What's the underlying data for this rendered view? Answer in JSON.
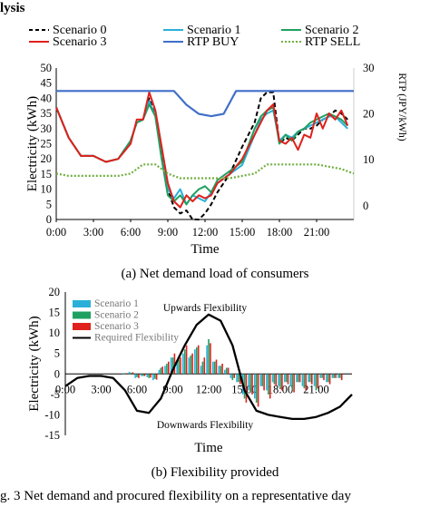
{
  "header_fragment": "lysis",
  "figure_caption": "g. 3 Net demand and procured flexibility on a representative day",
  "chart_data": [
    {
      "type": "line",
      "caption": "(a) Net demand load of consumers",
      "xlabel": "Time",
      "ylabel": "Electricity (kWh)",
      "y2label": "RTP (JPY/kWh)",
      "xlim": [
        0,
        24
      ],
      "ylim": [
        0,
        50
      ],
      "y2lim": [
        -3,
        30
      ],
      "xticks": [
        "0:00",
        "3:00",
        "6:00",
        "9:00",
        "12:00",
        "15:00",
        "18:00",
        "21:00"
      ],
      "yticks": [
        "0",
        "5",
        "10",
        "15",
        "20",
        "25",
        "30",
        "35",
        "40",
        "45",
        "50"
      ],
      "y2ticks": [
        "0",
        "10",
        "20",
        "30"
      ],
      "legend_position": "top, 3 columns",
      "series": [
        {
          "name": "Scenario 0",
          "color": "#000000",
          "style": "dashed",
          "axis": "left",
          "x": [
            0,
            1,
            2,
            3,
            4,
            5,
            6,
            6.5,
            7,
            7.5,
            8,
            8.5,
            9,
            9.5,
            10,
            10.5,
            11,
            11.5,
            12,
            12.5,
            13,
            14,
            15,
            16,
            16.5,
            17,
            17.5,
            18,
            18.5,
            19,
            19.5,
            20,
            20.5,
            21,
            21.5,
            22,
            22.5,
            23,
            23.5
          ],
          "values": [
            37,
            27,
            21,
            21,
            19,
            20,
            26,
            32,
            33,
            40,
            34,
            22,
            10,
            4,
            2,
            3,
            0,
            0,
            2,
            5,
            9,
            15,
            24,
            32,
            40,
            42,
            42,
            25,
            27,
            26,
            28,
            30,
            30,
            31,
            33,
            34,
            36,
            35,
            33
          ]
        },
        {
          "name": "Scenario 1",
          "color": "#2ab0d8",
          "style": "solid",
          "axis": "left",
          "x": [
            0,
            1,
            2,
            3,
            4,
            5,
            6,
            6.5,
            7,
            7.5,
            8,
            8.5,
            9,
            9.5,
            10,
            10.5,
            11,
            11.5,
            12,
            12.5,
            13,
            14,
            15,
            16,
            16.5,
            17,
            17.5,
            18,
            18.5,
            19,
            19.5,
            20,
            20.5,
            21,
            21.5,
            22,
            22.5,
            23,
            23.5
          ],
          "values": [
            37,
            27,
            21,
            21,
            19,
            20,
            26,
            32,
            33,
            39,
            34,
            20,
            10,
            7,
            10,
            5,
            8,
            7,
            6,
            9,
            12,
            15,
            18,
            28,
            33,
            35,
            36,
            26,
            28,
            27,
            29,
            30,
            31,
            32,
            33,
            34,
            34,
            32,
            30
          ]
        },
        {
          "name": "Scenario 2",
          "color": "#20a060",
          "style": "solid",
          "axis": "left",
          "x": [
            0,
            1,
            2,
            3,
            4,
            5,
            6,
            6.5,
            7,
            7.5,
            8,
            8.5,
            9,
            9.5,
            10,
            10.5,
            11,
            11.5,
            12,
            12.5,
            13,
            14,
            15,
            16,
            16.5,
            17,
            17.5,
            18,
            18.5,
            19,
            19.5,
            20,
            20.5,
            21,
            21.5,
            22,
            22.5,
            23,
            23.5
          ],
          "values": [
            37,
            27,
            21,
            21,
            19,
            20,
            26,
            32,
            33,
            38,
            34,
            20,
            8,
            6,
            8,
            5,
            8,
            10,
            11,
            9,
            13,
            16,
            19,
            30,
            34,
            36,
            37,
            25,
            28,
            26,
            29,
            30,
            32,
            33,
            34,
            35,
            34,
            33,
            31
          ]
        },
        {
          "name": "Scenario 3",
          "color": "#e0201c",
          "style": "solid",
          "axis": "left",
          "x": [
            0,
            1,
            2,
            3,
            4,
            5,
            6,
            6.5,
            7,
            7.5,
            8,
            8.5,
            9,
            9.5,
            10,
            10.5,
            11,
            11.5,
            12,
            12.5,
            13,
            14,
            15,
            16,
            16.5,
            17,
            17.5,
            18,
            18.5,
            19,
            19.5,
            20,
            20.5,
            21,
            21.5,
            22,
            22.5,
            23,
            23.5
          ],
          "values": [
            37,
            27,
            21,
            21,
            19,
            20,
            25,
            33,
            33,
            42,
            36,
            24,
            12,
            6,
            4,
            8,
            6,
            8,
            7,
            8,
            12,
            15,
            20,
            28,
            32,
            36,
            38,
            26,
            25,
            27,
            23,
            28,
            27,
            35,
            30,
            35,
            33,
            36,
            31
          ]
        },
        {
          "name": "RTP BUY",
          "color": "#3f6fc8",
          "style": "solid",
          "axis": "right",
          "x": [
            0,
            9.5,
            10.5,
            11.5,
            12.5,
            13.5,
            14.5,
            24
          ],
          "values": [
            25,
            25,
            22,
            20,
            19.5,
            20,
            25,
            25
          ]
        },
        {
          "name": "RTP SELL",
          "color": "#70b040",
          "style": "dotted",
          "axis": "right",
          "x": [
            0,
            1,
            2,
            3,
            4,
            5,
            6,
            7,
            8,
            9,
            10,
            11,
            12,
            13,
            14,
            15,
            16,
            17,
            18,
            19,
            20,
            21,
            22,
            23,
            24
          ],
          "values": [
            7,
            6.5,
            6.5,
            6.5,
            6.5,
            6.5,
            7,
            9,
            9,
            7,
            6,
            6,
            6,
            6,
            6,
            6.5,
            7,
            9,
            9,
            9,
            9,
            9,
            8.5,
            8,
            7
          ]
        }
      ]
    },
    {
      "type": "bar",
      "caption": "(b) Flexibility provided",
      "xlabel": "Time",
      "ylabel": "Electricity (kWh)",
      "xlim": [
        0,
        24
      ],
      "ylim": [
        -15,
        20
      ],
      "xticks": [
        "0:00",
        "3:00",
        "6:00",
        "9:00",
        "12:00",
        "15:00",
        "18:00",
        "21:00"
      ],
      "yticks": [
        "-15",
        "-10",
        "-5",
        "0",
        "5",
        "10",
        "15",
        "20"
      ],
      "legend_position": "top-left",
      "annotations": [
        "Upwards Flexibility",
        "Downwards Flexibility"
      ],
      "bar_x": [
        5,
        5.5,
        6,
        6.5,
        7,
        7.5,
        8,
        8.5,
        9,
        9.5,
        10,
        10.5,
        11,
        11.5,
        12,
        12.5,
        13,
        13.5,
        14,
        14.5,
        15,
        15.5,
        16,
        16.5,
        17,
        17.5,
        18,
        18.5,
        19,
        19.5,
        20,
        20.5,
        21,
        21.5,
        22,
        22.5,
        23
      ],
      "series": [
        {
          "name": "Scenario 1",
          "color": "#2ab0d8",
          "values": [
            0.2,
            0.5,
            -1,
            -0.5,
            -0.8,
            -1.5,
            1,
            2,
            4,
            3,
            5,
            4,
            6,
            2,
            7,
            3,
            2,
            1,
            -1,
            -2,
            -5,
            -4,
            -6,
            -3,
            -4,
            -2,
            -3,
            -2,
            -3,
            -2,
            -3,
            -2,
            -3,
            -1,
            -2,
            -1,
            -1
          ]
        },
        {
          "name": "Scenario 2",
          "color": "#20a060",
          "values": [
            0.2,
            0.3,
            -0.8,
            -0.5,
            -1,
            -1.2,
            1.5,
            2.5,
            4,
            3.5,
            6,
            4.5,
            6.5,
            3,
            8.5,
            3,
            2,
            1.5,
            -1.5,
            -2,
            -6,
            -4.5,
            -7,
            -3,
            -5,
            -2.5,
            -3.5,
            -2,
            -4,
            -2,
            -3.5,
            -2,
            -4,
            -1,
            -2,
            -1,
            -1
          ]
        },
        {
          "name": "Scenario 3",
          "color": "#e0201c",
          "values": [
            0.2,
            0.4,
            -1,
            -0.5,
            -0.9,
            -1.4,
            1.8,
            3,
            5,
            4,
            7,
            5,
            7,
            4,
            7.5,
            3.5,
            2.5,
            1.5,
            -1,
            -2.5,
            -7,
            -5,
            -8,
            -4,
            -6,
            -3,
            -4,
            -2.5,
            -4.5,
            -2,
            -4,
            -2.5,
            -3.5,
            -1.5,
            -2.5,
            -1,
            -1.5
          ]
        },
        {
          "name": "Required Flexibility",
          "color": "#000000",
          "kind": "line",
          "x": [
            0,
            1,
            2,
            3,
            4,
            5,
            6,
            7,
            8,
            9,
            10,
            11,
            12,
            13,
            14,
            15,
            16,
            17,
            18,
            19,
            20,
            21,
            22,
            23,
            24
          ],
          "values": [
            -3,
            -1,
            -0.5,
            -0.5,
            -1,
            -4,
            -9,
            -9.5,
            -6,
            1,
            7,
            12,
            14.5,
            13,
            7,
            -4,
            -9,
            -10,
            -10.5,
            -11,
            -11,
            -10.5,
            -9.5,
            -8,
            -5
          ]
        }
      ]
    }
  ]
}
